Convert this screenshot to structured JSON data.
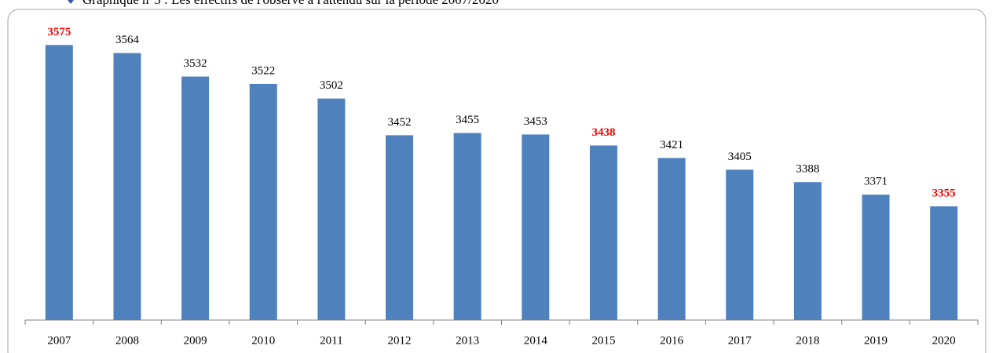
{
  "chart_data": {
    "type": "bar",
    "title": "Graphique n°3 : Les effectifs de l'observé à l'attendu sur la période 2007/2020",
    "categories": [
      "2007",
      "2008",
      "2009",
      "2010",
      "2011",
      "2012",
      "2013",
      "2014",
      "2015",
      "2016",
      "2017",
      "2018",
      "2019",
      "2020"
    ],
    "values": [
      3575,
      3564,
      3532,
      3522,
      3502,
      3452,
      3455,
      3453,
      3438,
      3421,
      3405,
      3388,
      3371,
      3355
    ],
    "color": "#4f81bd",
    "value_label_colors": [
      "#ff0000",
      "#000000",
      "#000000",
      "#000000",
      "#000000",
      "#000000",
      "#000000",
      "#000000",
      "#ff0000",
      "#000000",
      "#000000",
      "#000000",
      "#000000",
      "#ff0000"
    ],
    "ylim": [
      3200,
      3600
    ]
  }
}
